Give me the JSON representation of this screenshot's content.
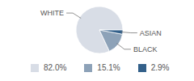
{
  "chart_data": {
    "type": "pie",
    "categories": [
      "WHITE",
      "BLACK",
      "ASIAN"
    ],
    "values": [
      82.0,
      15.1,
      2.9
    ],
    "value_labels": [
      "82.0%",
      "15.1%",
      "2.9%"
    ],
    "colors": [
      "#d8dde6",
      "#8da2b8",
      "#33608a"
    ],
    "legend": "bottom"
  }
}
